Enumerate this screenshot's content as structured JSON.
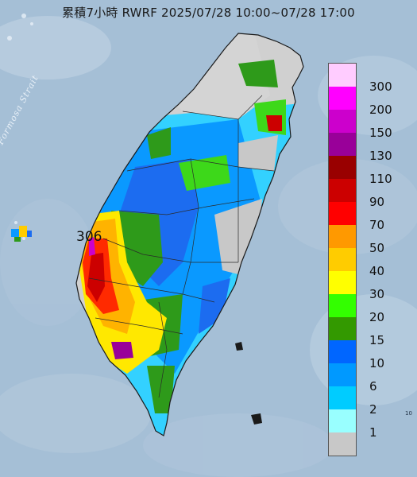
{
  "title": "累積7小時 RWRF 2025/07/28 10:00~07/28 17:00",
  "strait_label": "Formosa Strait",
  "max_value_label": "306",
  "corner_mark": "10",
  "legend": [
    {
      "label": "300",
      "color": "#ffccff"
    },
    {
      "label": "200",
      "color": "#ff00ff"
    },
    {
      "label": "150",
      "color": "#cc00cc"
    },
    {
      "label": "130",
      "color": "#990099"
    },
    {
      "label": "110",
      "color": "#990000"
    },
    {
      "label": "90",
      "color": "#cc0000"
    },
    {
      "label": "70",
      "color": "#ff0000"
    },
    {
      "label": "50",
      "color": "#ff9900"
    },
    {
      "label": "40",
      "color": "#ffcc00"
    },
    {
      "label": "30",
      "color": "#ffff00"
    },
    {
      "label": "20",
      "color": "#33ff00"
    },
    {
      "label": "15",
      "color": "#339900"
    },
    {
      "label": "10",
      "color": "#0066ff"
    },
    {
      "label": "6",
      "color": "#0099ff"
    },
    {
      "label": "2",
      "color": "#00ccff"
    },
    {
      "label": "1",
      "color": "#99ffff"
    },
    {
      "label": "",
      "color": "#c8c8c8"
    }
  ]
}
